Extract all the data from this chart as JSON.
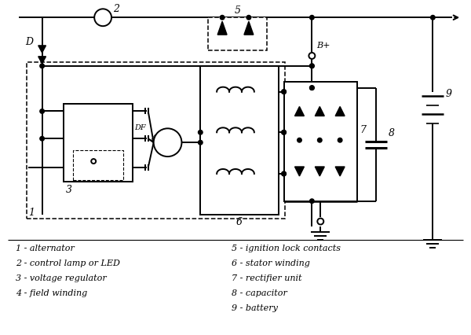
{
  "background_color": "#ffffff",
  "line_color": "#000000",
  "legend": [
    "1 - alternator",
    "2 - control lamp or LED",
    "3 - voltage regulator",
    "4 - field winding",
    "5 - ignition lock contacts",
    "6 - stator winding",
    "7 - rectifier unit",
    "8 - capacitor",
    "9 - battery"
  ]
}
